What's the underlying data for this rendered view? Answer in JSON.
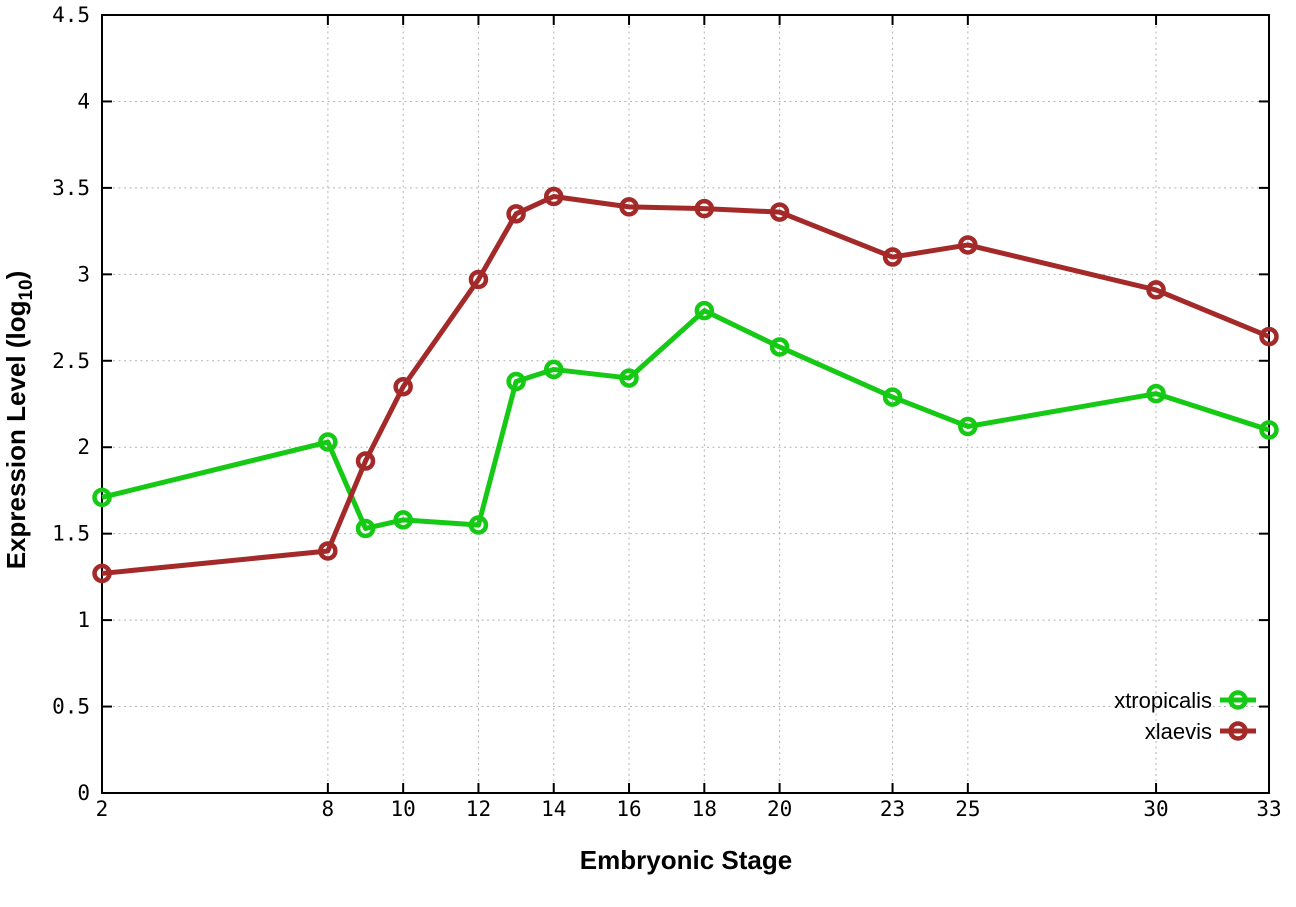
{
  "chart_data": {
    "type": "line",
    "title": "",
    "xlabel": "Embryonic Stage",
    "ylabel": {
      "pre": "Expression Level (log",
      "sub": "10",
      "post": ")"
    },
    "xlim": [
      2,
      33
    ],
    "ylim": [
      0,
      4.5
    ],
    "x_ticks": [
      2,
      8,
      10,
      12,
      14,
      16,
      18,
      20,
      23,
      25,
      30,
      33
    ],
    "y_ticks": [
      0,
      0.5,
      1,
      1.5,
      2,
      2.5,
      3,
      3.5,
      4,
      4.5
    ],
    "grid": true,
    "grid_color": "#b3b3b3",
    "border_color": "#000000",
    "background_color": "#ffffff",
    "marker_style": "open-circle",
    "legend_position": "bottom-right",
    "x": [
      2,
      8,
      9,
      10,
      12,
      13,
      14,
      16,
      18,
      20,
      23,
      25,
      30,
      33
    ],
    "series": [
      {
        "name": "xtropicalis",
        "color": "#15c915",
        "values": [
          1.71,
          2.03,
          1.53,
          1.58,
          1.55,
          2.38,
          2.45,
          2.4,
          2.79,
          2.58,
          2.29,
          2.12,
          2.31,
          2.1
        ]
      },
      {
        "name": "xlaevis",
        "color": "#a42a2a",
        "values": [
          1.27,
          1.4,
          1.92,
          2.35,
          2.97,
          3.35,
          3.45,
          3.39,
          3.38,
          3.36,
          3.1,
          3.17,
          2.91,
          2.64
        ]
      }
    ]
  }
}
